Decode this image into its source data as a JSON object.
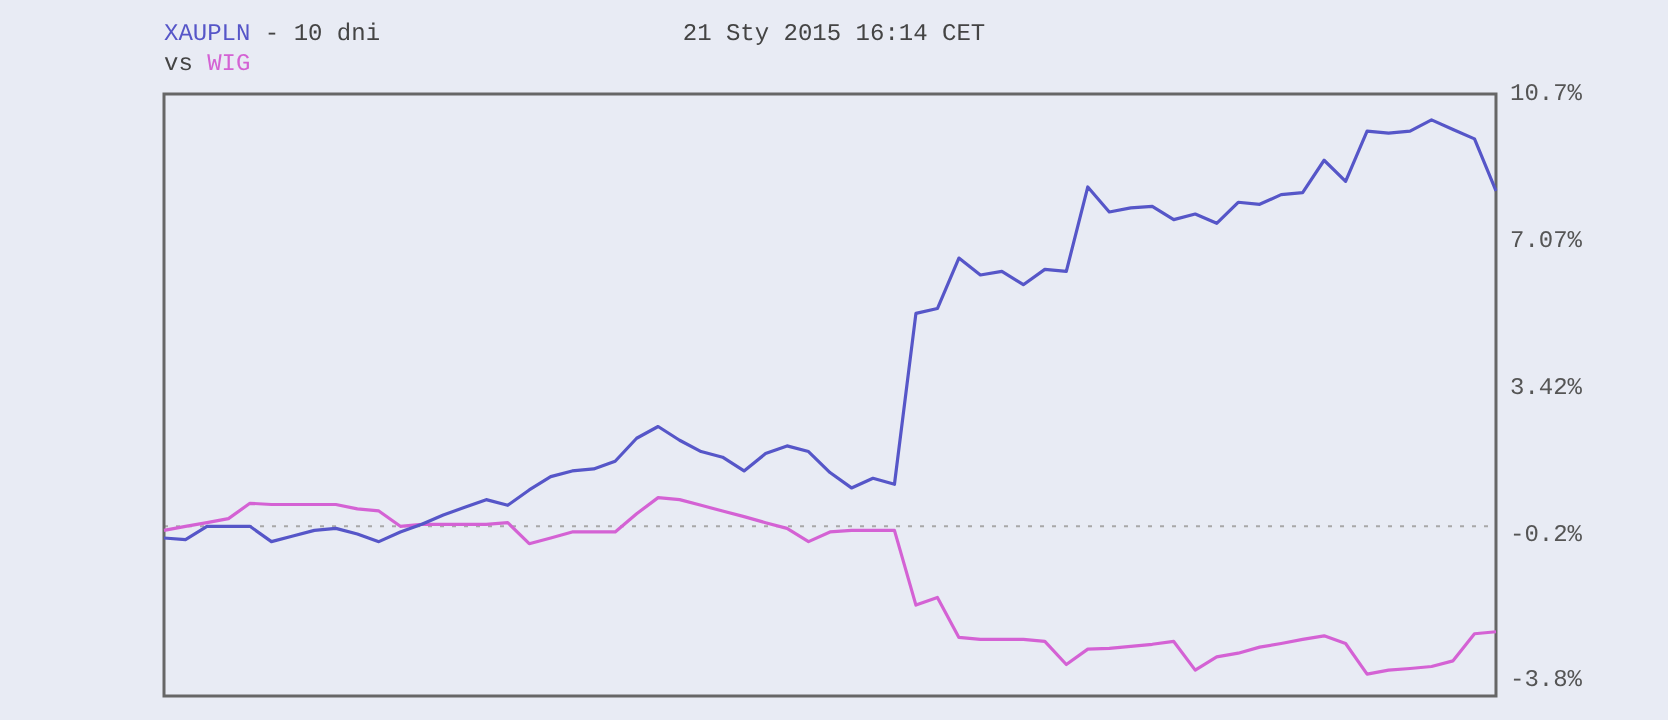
{
  "chart_data": {
    "type": "line",
    "title": "- 10 dni",
    "subtitle": "vs",
    "annotations": [
      "21 Sty 2015 16:14 CET"
    ],
    "categories": [
      null,
      null,
      null,
      null,
      null,
      null,
      null,
      null,
      null,
      null,
      null,
      null,
      null,
      null,
      null,
      null,
      null,
      null,
      null,
      null,
      null,
      null,
      null,
      null,
      null,
      null,
      null,
      null,
      null,
      null,
      null,
      null,
      null,
      null,
      null,
      null,
      null,
      null,
      null,
      null,
      null,
      null,
      null,
      null,
      null,
      null,
      null,
      null,
      null,
      null,
      null,
      null,
      null,
      null,
      null,
      null,
      null,
      null,
      null,
      null,
      null,
      null,
      null
    ],
    "series": [
      {
        "name": "XAUPLN",
        "color": "#5656c8",
        "values": [
          -0.29,
          -0.33,
          0.0,
          0.0,
          0.0,
          -0.38,
          -0.24,
          -0.1,
          -0.05,
          -0.19,
          -0.38,
          -0.14,
          0.05,
          0.28,
          0.47,
          0.66,
          0.52,
          0.9,
          1.23,
          1.37,
          1.42,
          1.61,
          2.18,
          2.47,
          2.13,
          1.85,
          1.71,
          1.37,
          1.8,
          1.99,
          1.85,
          1.33,
          0.95,
          1.19,
          1.04,
          5.27,
          5.39,
          6.64,
          6.22,
          6.31,
          5.98,
          6.36,
          6.31,
          8.4,
          7.78,
          7.88,
          7.92,
          7.59,
          7.73,
          7.5,
          8.02,
          7.97,
          8.21,
          8.26,
          9.06,
          8.54,
          9.78,
          9.73,
          9.78,
          10.06,
          9.82,
          9.59,
          8.3
        ]
      },
      {
        "name": "WIG",
        "color": "#d462d4",
        "values": [
          -0.1,
          0.0,
          0.09,
          0.19,
          0.57,
          0.54,
          0.54,
          0.54,
          0.54,
          0.43,
          0.38,
          0.0,
          0.05,
          0.05,
          0.05,
          0.05,
          0.09,
          -0.43,
          -0.29,
          -0.14,
          -0.14,
          -0.14,
          0.31,
          0.71,
          0.66,
          0.52,
          0.38,
          0.24,
          0.09,
          -0.05,
          -0.38,
          -0.14,
          -0.1,
          -0.1,
          -0.1,
          -1.95,
          -1.76,
          -2.75,
          -2.8,
          -2.8,
          -2.8,
          -2.85,
          -3.42,
          -3.04,
          -3.02,
          -2.97,
          -2.92,
          -2.85,
          -3.56,
          -3.23,
          -3.14,
          -2.99,
          -2.9,
          -2.8,
          -2.71,
          -2.9,
          -3.66,
          -3.56,
          -3.52,
          -3.47,
          -3.33,
          -2.66,
          -2.61
        ]
      }
    ],
    "ylim": [
      -4.2,
      10.7
    ],
    "yticks": [
      {
        "value": 10.7,
        "label": "10.7%"
      },
      {
        "value": 7.07,
        "label": "7.07%"
      },
      {
        "value": 3.42,
        "label": "3.42%"
      },
      {
        "value": -0.2,
        "label": "-0.2%"
      },
      {
        "value": -3.8,
        "label": "-3.8%"
      }
    ],
    "ref_lines": [
      {
        "axis": "y",
        "value": 0,
        "color": "#a8a8a8",
        "line_style": "dotted"
      }
    ],
    "legend": "top left",
    "marker": "none",
    "line_style": "solid",
    "tick_labels": "y"
  }
}
